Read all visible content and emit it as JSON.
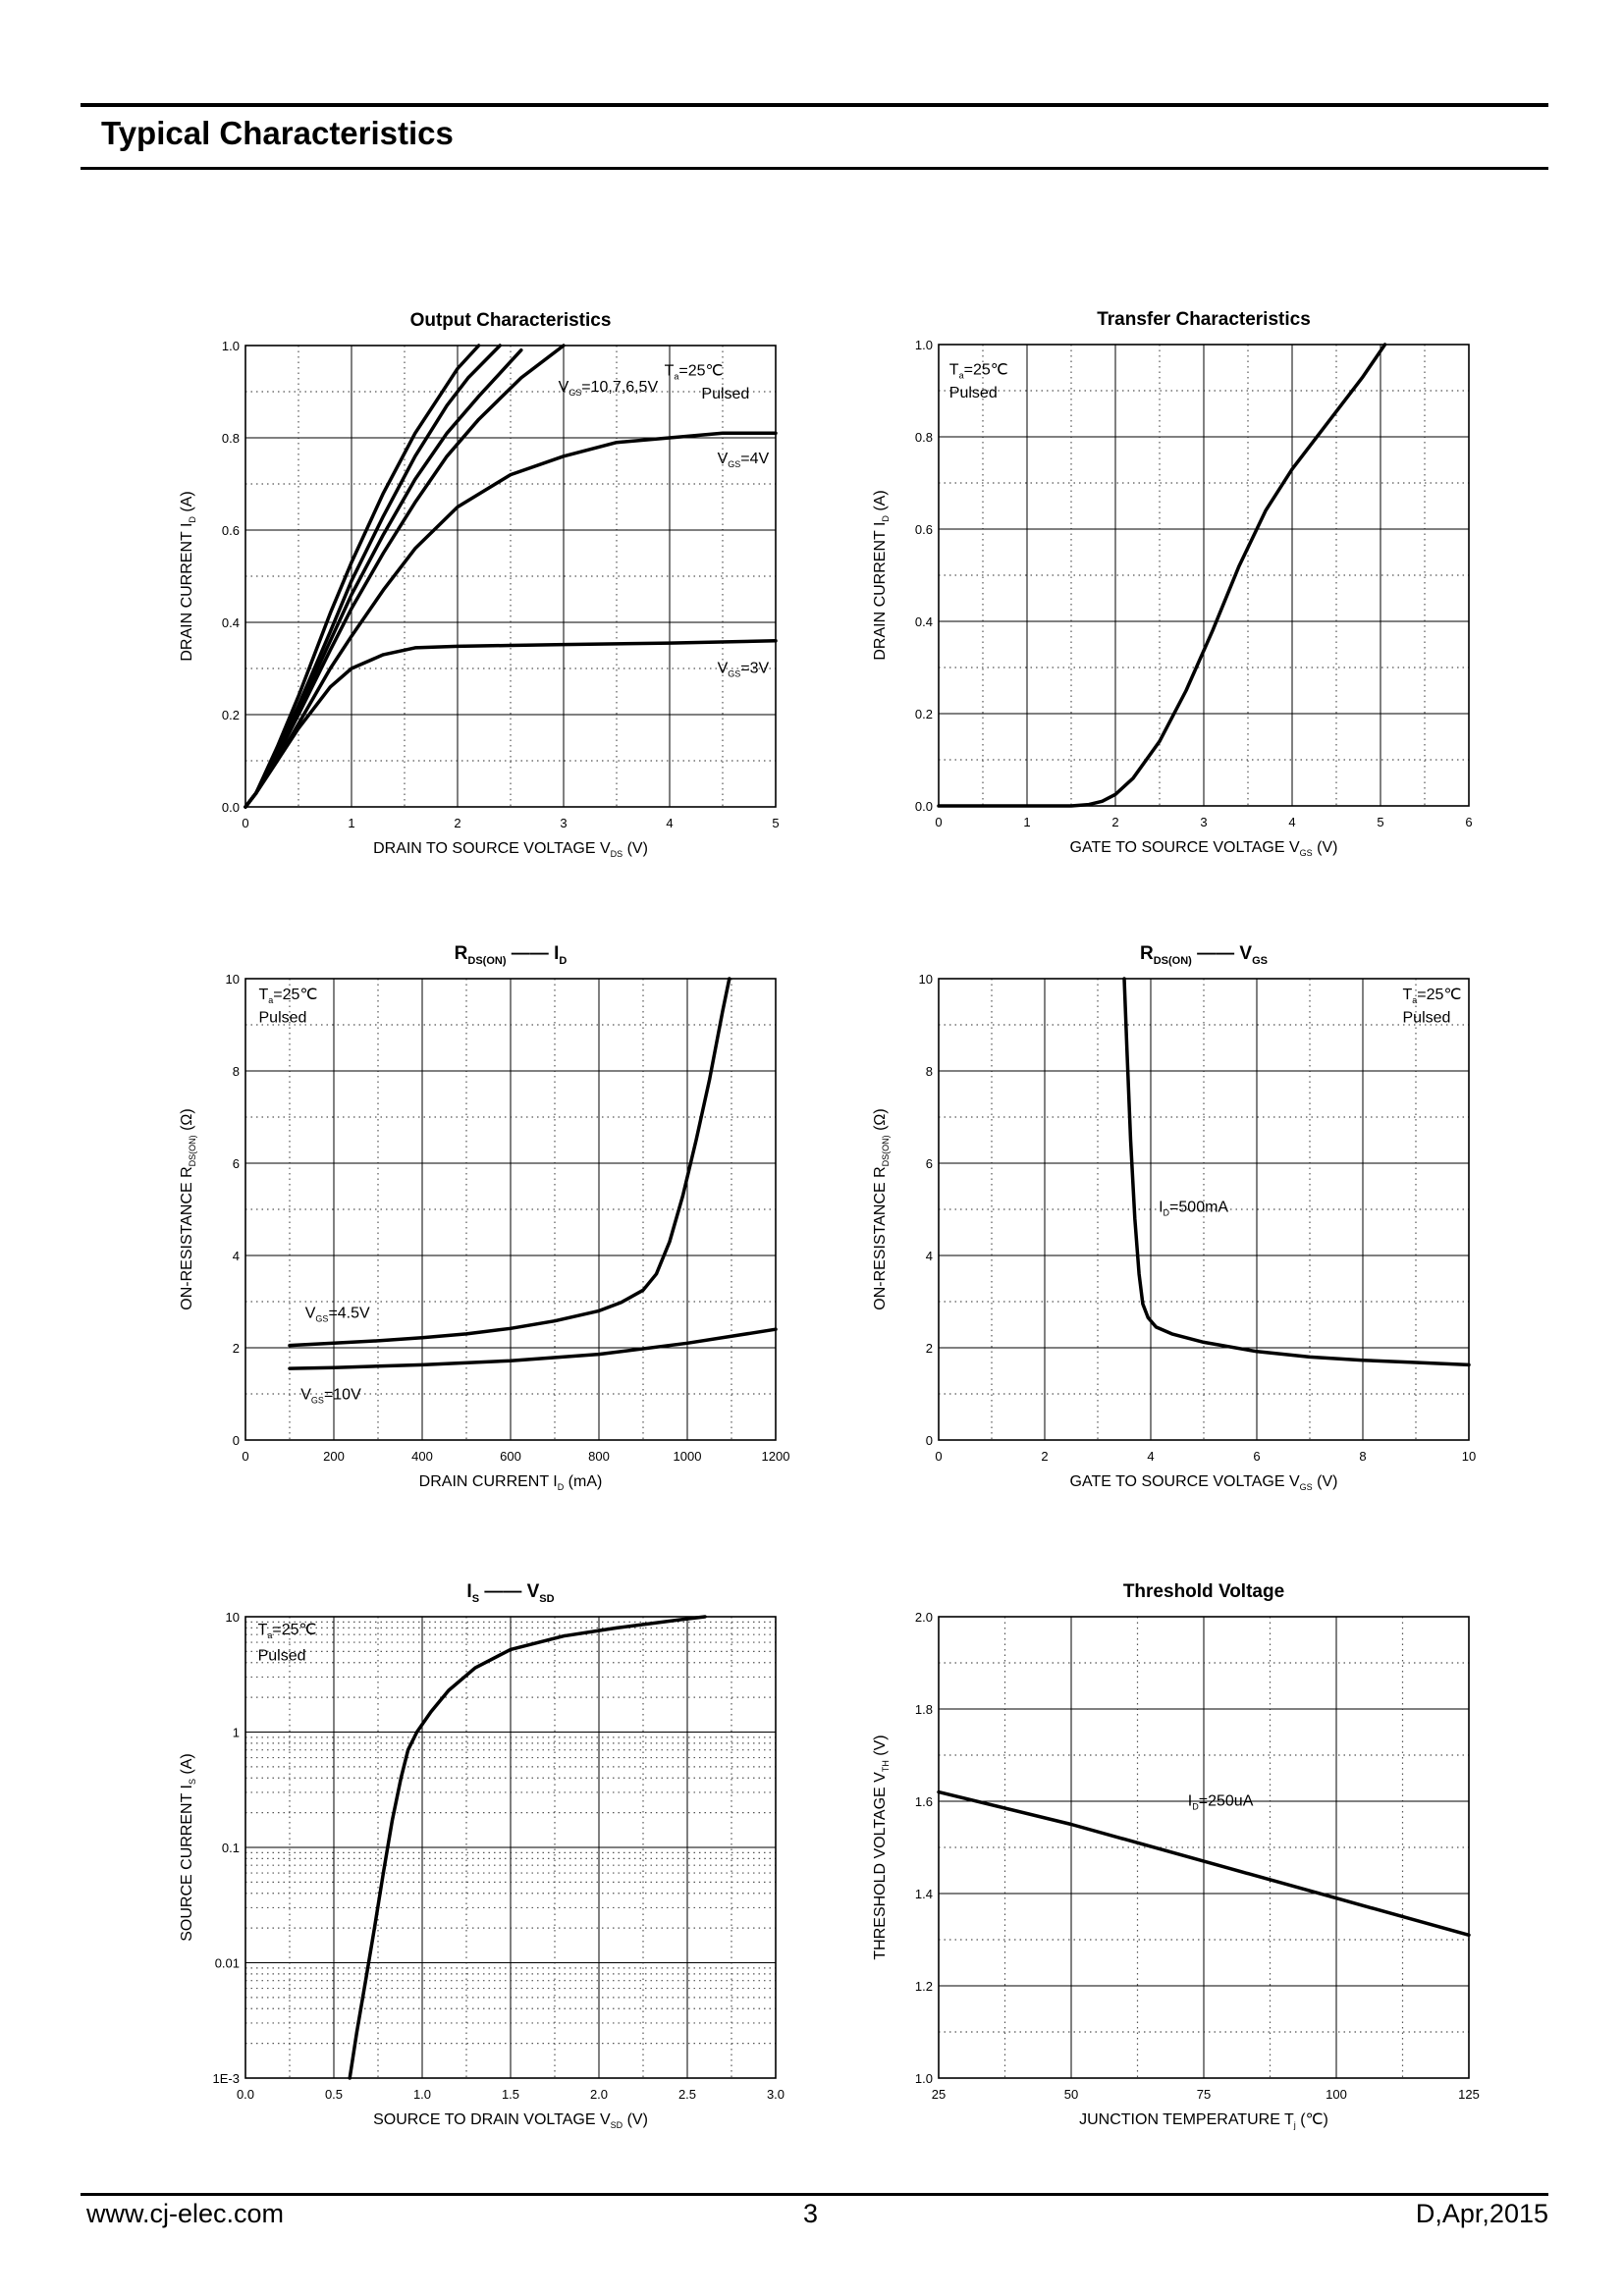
{
  "header": {
    "title": "Typical Characteristics"
  },
  "footer": {
    "url": "www.cj-elec.com",
    "page": "3",
    "date": "D,Apr,2015"
  },
  "chart_data": [
    {
      "type": "line",
      "title": "Output Characteristics",
      "x_scale": "linear",
      "y_scale": "linear",
      "xlim": [
        0,
        5
      ],
      "ylim": [
        0,
        1.0
      ],
      "xticks": [
        0,
        1,
        2,
        3,
        4,
        5
      ],
      "xtick_labels": [
        "0",
        "1",
        "2",
        "3",
        "4",
        "5"
      ],
      "yticks": [
        0,
        0.2,
        0.4,
        0.6,
        0.8,
        1.0
      ],
      "ytick_labels": [
        "0.0",
        "0.2",
        "0.4",
        "0.6",
        "0.8",
        "1.0"
      ],
      "xlabel": {
        "main": "DRAIN TO SOURCE VOLTAGE",
        "sym": "V",
        "sub": "DS",
        "unit": "(V)"
      },
      "ylabel": {
        "main": "DRAIN CURRENT",
        "sym": "I",
        "sub": "D",
        "unit": "(A)"
      },
      "grid": true,
      "series": [
        {
          "x": [
            0,
            0.1,
            0.3,
            0.5,
            0.8,
            1.0,
            1.3,
            1.6,
            1.8,
            2.0,
            2.2
          ],
          "y": [
            0,
            0.03,
            0.13,
            0.24,
            0.42,
            0.53,
            0.68,
            0.81,
            0.88,
            0.95,
            1.0
          ]
        },
        {
          "x": [
            0,
            0.1,
            0.3,
            0.5,
            0.8,
            1.0,
            1.3,
            1.6,
            1.9,
            2.1,
            2.4
          ],
          "y": [
            0,
            0.03,
            0.12,
            0.22,
            0.38,
            0.49,
            0.63,
            0.76,
            0.87,
            0.93,
            1.0
          ]
        },
        {
          "x": [
            0,
            0.1,
            0.3,
            0.5,
            0.8,
            1.0,
            1.3,
            1.6,
            1.9,
            2.2,
            2.6
          ],
          "y": [
            0,
            0.03,
            0.12,
            0.21,
            0.36,
            0.46,
            0.59,
            0.71,
            0.81,
            0.89,
            0.99
          ]
        },
        {
          "x": [
            0,
            0.1,
            0.3,
            0.5,
            0.8,
            1.0,
            1.3,
            1.6,
            1.9,
            2.2,
            2.6,
            3.0
          ],
          "y": [
            0,
            0.03,
            0.11,
            0.2,
            0.34,
            0.43,
            0.55,
            0.66,
            0.76,
            0.84,
            0.93,
            1.0
          ]
        },
        {
          "x": [
            0,
            0.1,
            0.3,
            0.5,
            0.8,
            1.0,
            1.3,
            1.6,
            2.0,
            2.5,
            3.0,
            3.5,
            4.0,
            4.5,
            5.0
          ],
          "y": [
            0,
            0.03,
            0.1,
            0.18,
            0.3,
            0.37,
            0.47,
            0.56,
            0.65,
            0.72,
            0.76,
            0.79,
            0.8,
            0.81,
            0.81
          ]
        },
        {
          "x": [
            0,
            0.1,
            0.3,
            0.5,
            0.8,
            1.0,
            1.3,
            1.6,
            2.0,
            2.5,
            3.0,
            4.0,
            5.0
          ],
          "y": [
            0,
            0.03,
            0.1,
            0.17,
            0.26,
            0.3,
            0.33,
            0.345,
            0.348,
            0.35,
            0.352,
            0.355,
            0.36
          ]
        }
      ],
      "annotations": [
        {
          "x": 3.95,
          "y": 0.935,
          "sym": "T",
          "sub": "a",
          "rest": "=25℃"
        },
        {
          "x": 4.3,
          "y": 0.885,
          "text": "Pulsed"
        },
        {
          "x": 2.95,
          "y": 0.9,
          "sym": "V",
          "sub": "GS",
          "rest": "=10,7,6,5V"
        },
        {
          "x": 4.45,
          "y": 0.745,
          "sym": "V",
          "sub": "GS",
          "rest": "=4V"
        },
        {
          "x": 4.45,
          "y": 0.29,
          "sym": "V",
          "sub": "GS",
          "rest": "=3V"
        }
      ]
    },
    {
      "type": "line",
      "title": "Transfer Characteristics",
      "x_scale": "linear",
      "y_scale": "linear",
      "xlim": [
        0,
        6
      ],
      "ylim": [
        0,
        1.0
      ],
      "xticks": [
        0,
        1,
        2,
        3,
        4,
        5,
        6
      ],
      "xtick_labels": [
        "0",
        "1",
        "2",
        "3",
        "4",
        "5",
        "6"
      ],
      "yticks": [
        0,
        0.2,
        0.4,
        0.6,
        0.8,
        1.0
      ],
      "ytick_labels": [
        "0.0",
        "0.2",
        "0.4",
        "0.6",
        "0.8",
        "1.0"
      ],
      "xlabel": {
        "main": "GATE TO SOURCE VOLTAGE",
        "sym": "V",
        "sub": "GS",
        "unit": "(V)"
      },
      "ylabel": {
        "main": "DRAIN CURRENT",
        "sym": "I",
        "sub": "D",
        "unit": "(A)"
      },
      "grid": true,
      "series": [
        {
          "x": [
            0,
            1.5,
            1.7,
            1.85,
            2.0,
            2.2,
            2.5,
            2.8,
            3.1,
            3.4,
            3.7,
            4.0,
            4.4,
            4.8,
            5.05
          ],
          "y": [
            0,
            0,
            0.003,
            0.01,
            0.025,
            0.06,
            0.14,
            0.25,
            0.38,
            0.52,
            0.64,
            0.73,
            0.83,
            0.93,
            1.0
          ]
        }
      ],
      "annotations": [
        {
          "x": 0.12,
          "y": 0.935,
          "sym": "T",
          "sub": "a",
          "rest": "=25℃"
        },
        {
          "x": 0.12,
          "y": 0.885,
          "text": "Pulsed"
        }
      ]
    },
    {
      "type": "line",
      "title": "",
      "title_parts": [
        {
          "sym": "R",
          "sub": "DS(ON)"
        },
        {
          "text": "——"
        },
        {
          "sym": "I",
          "sub": "D"
        }
      ],
      "x_scale": "linear",
      "y_scale": "linear",
      "xlim": [
        0,
        1200
      ],
      "ylim": [
        0,
        10
      ],
      "xticks": [
        0,
        200,
        400,
        600,
        800,
        1000,
        1200
      ],
      "xtick_labels": [
        "0",
        "200",
        "400",
        "600",
        "800",
        "1000",
        "1200"
      ],
      "yticks": [
        0,
        2,
        4,
        6,
        8,
        10
      ],
      "ytick_labels": [
        "0",
        "2",
        "4",
        "6",
        "8",
        "10"
      ],
      "xlabel": {
        "main": "DRAIN CURRENT",
        "sym": "I",
        "sub": "D",
        "unit": "(mA)"
      },
      "ylabel": {
        "main": "ON-RESISTANCE",
        "sym": "R",
        "sub": "DS(ON)",
        "unit": "(Ω)"
      },
      "grid": true,
      "series": [
        {
          "x": [
            100,
            200,
            300,
            400,
            500,
            600,
            700,
            800,
            850,
            900,
            930,
            960,
            990,
            1020,
            1050,
            1080,
            1095
          ],
          "y": [
            2.05,
            2.1,
            2.15,
            2.22,
            2.3,
            2.42,
            2.58,
            2.8,
            2.98,
            3.25,
            3.6,
            4.3,
            5.3,
            6.5,
            7.8,
            9.3,
            10
          ]
        },
        {
          "x": [
            100,
            200,
            400,
            600,
            800,
            1000,
            1200
          ],
          "y": [
            1.55,
            1.57,
            1.63,
            1.72,
            1.86,
            2.1,
            2.4
          ]
        }
      ],
      "annotations": [
        {
          "x": 30,
          "y": 9.55,
          "sym": "T",
          "sub": "a",
          "rest": "=25℃"
        },
        {
          "x": 30,
          "y": 9.05,
          "text": "Pulsed"
        },
        {
          "x": 135,
          "y": 2.65,
          "sym": "V",
          "sub": "GS",
          "rest": "=4.5V"
        },
        {
          "x": 125,
          "y": 0.88,
          "sym": "V",
          "sub": "GS",
          "rest": "=10V"
        }
      ]
    },
    {
      "type": "line",
      "title": "",
      "title_parts": [
        {
          "sym": "R",
          "sub": "DS(ON)"
        },
        {
          "text": "——"
        },
        {
          "sym": "V",
          "sub": "GS"
        }
      ],
      "x_scale": "linear",
      "y_scale": "linear",
      "xlim": [
        0,
        10
      ],
      "ylim": [
        0,
        10
      ],
      "xticks": [
        0,
        2,
        4,
        6,
        8,
        10
      ],
      "xtick_labels": [
        "0",
        "2",
        "4",
        "6",
        "8",
        "10"
      ],
      "yticks": [
        0,
        2,
        4,
        6,
        8,
        10
      ],
      "ytick_labels": [
        "0",
        "2",
        "4",
        "6",
        "8",
        "10"
      ],
      "xlabel": {
        "main": "GATE TO SOURCE VOLTAGE",
        "sym": "V",
        "sub": "GS",
        "unit": "(V)"
      },
      "ylabel": {
        "main": "ON-RESISTANCE",
        "sym": "R",
        "sub": "DS(ON)",
        "unit": "(Ω)"
      },
      "grid": true,
      "series": [
        {
          "x": [
            3.5,
            3.55,
            3.62,
            3.7,
            3.78,
            3.85,
            3.95,
            4.1,
            4.4,
            5.0,
            6.0,
            7.0,
            8.0,
            9.0,
            10.0
          ],
          "y": [
            10,
            8.5,
            6.5,
            4.8,
            3.6,
            2.95,
            2.65,
            2.45,
            2.3,
            2.12,
            1.92,
            1.8,
            1.73,
            1.68,
            1.63
          ]
        }
      ],
      "annotations": [
        {
          "x": 8.75,
          "y": 9.55,
          "sym": "T",
          "sub": "a",
          "rest": "=25℃"
        },
        {
          "x": 8.75,
          "y": 9.05,
          "text": "Pulsed"
        },
        {
          "x": 4.15,
          "y": 4.95,
          "sym": "I",
          "sub": "D",
          "rest": "=500mA"
        }
      ]
    },
    {
      "type": "line",
      "title": "",
      "title_parts": [
        {
          "sym": "I",
          "sub": "S"
        },
        {
          "text": "——"
        },
        {
          "sym": "V",
          "sub": "SD"
        }
      ],
      "x_scale": "linear",
      "y_scale": "log",
      "xlim": [
        0,
        3.0
      ],
      "ylim": [
        0.001,
        10
      ],
      "xticks": [
        0,
        0.5,
        1.0,
        1.5,
        2.0,
        2.5,
        3.0
      ],
      "xtick_labels": [
        "0.0",
        "0.5",
        "1.0",
        "1.5",
        "2.0",
        "2.5",
        "3.0"
      ],
      "yticks": [
        0.001,
        0.01,
        0.1,
        1,
        10
      ],
      "ytick_labels": [
        "1E-3",
        "0.01",
        "0.1",
        "1",
        "10"
      ],
      "xlabel": {
        "main": "SOURCE TO DRAIN VOLTAGE",
        "sym": "V",
        "sub": "SD",
        "unit": "(V)"
      },
      "ylabel": {
        "main": "SOURCE CURRENT",
        "sym": "I",
        "sub": "S",
        "unit": "(A)"
      },
      "grid": true,
      "series": [
        {
          "x": [
            0.59,
            0.63,
            0.68,
            0.73,
            0.78,
            0.83,
            0.88,
            0.92,
            0.97,
            1.05,
            1.15,
            1.3,
            1.5,
            1.8,
            2.1,
            2.5,
            2.6
          ],
          "y": [
            0.001,
            0.0025,
            0.007,
            0.02,
            0.06,
            0.17,
            0.4,
            0.7,
            1.0,
            1.5,
            2.3,
            3.6,
            5.2,
            6.8,
            8.0,
            9.6,
            10
          ]
        }
      ],
      "annotations": [
        {
          "x": 0.07,
          "y": 7.0,
          "sym": "T",
          "sub": "a",
          "rest": "=25℃"
        },
        {
          "x": 0.07,
          "y": 4.2,
          "text": "Pulsed"
        }
      ]
    },
    {
      "type": "line",
      "title": "Threshold Voltage",
      "x_scale": "linear",
      "y_scale": "linear",
      "xlim": [
        25,
        125
      ],
      "ylim": [
        1.0,
        2.0
      ],
      "xticks": [
        25,
        50,
        75,
        100,
        125
      ],
      "xtick_labels": [
        "25",
        "50",
        "75",
        "100",
        "125"
      ],
      "yticks": [
        1.0,
        1.2,
        1.4,
        1.6,
        1.8,
        2.0
      ],
      "ytick_labels": [
        "1.0",
        "1.2",
        "1.4",
        "1.6",
        "1.8",
        "2.0"
      ],
      "xlabel": {
        "main": "JUNCTION TEMPERATURE",
        "sym": "T",
        "sub": "j",
        "unit": "(℃)"
      },
      "ylabel": {
        "main": "THRESHOLD VOLTAGE",
        "sym": "V",
        "sub": "TH",
        "unit": "(V)"
      },
      "grid": true,
      "series": [
        {
          "x": [
            25,
            50,
            75,
            100,
            125
          ],
          "y": [
            1.62,
            1.55,
            1.47,
            1.39,
            1.31
          ]
        }
      ],
      "annotations": [
        {
          "x": 72,
          "y": 1.59,
          "sym": "I",
          "sub": "D",
          "rest": "=250uA"
        }
      ]
    }
  ]
}
